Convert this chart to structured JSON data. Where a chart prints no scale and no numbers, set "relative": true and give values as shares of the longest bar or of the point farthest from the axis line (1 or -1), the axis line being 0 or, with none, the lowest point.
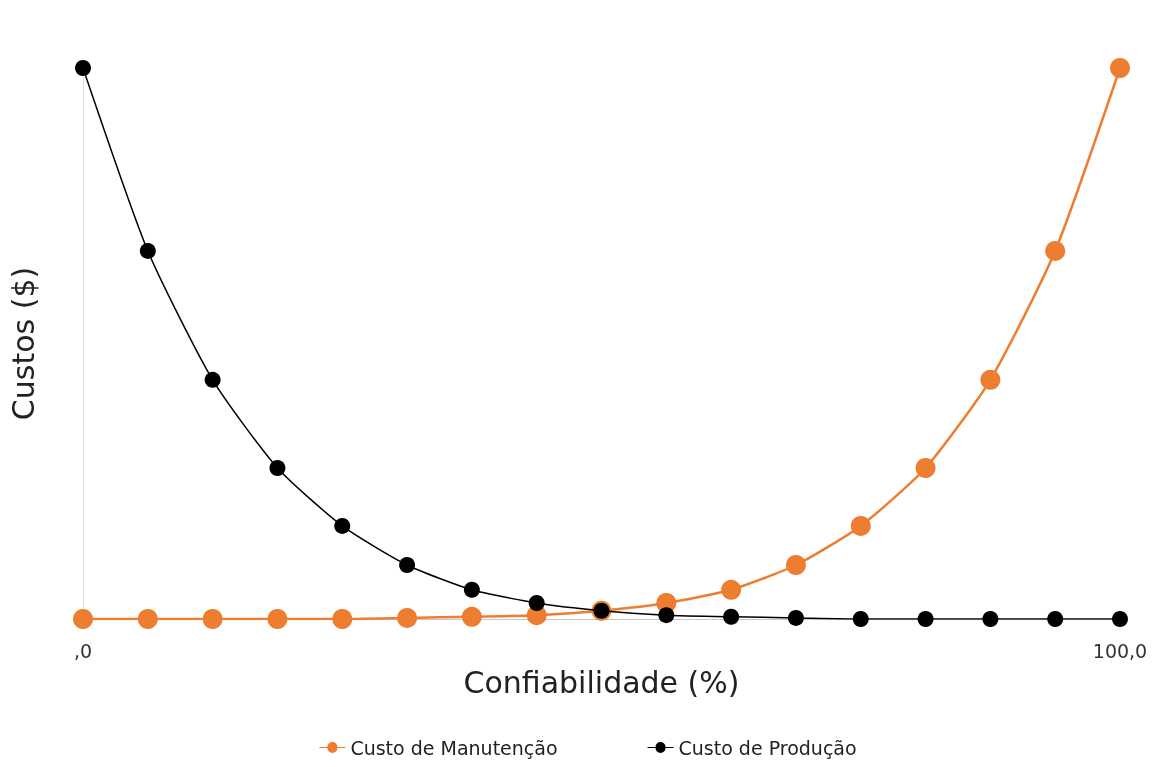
{
  "chart_data": {
    "type": "line",
    "xlabel": "Confiabilidade (%)",
    "ylabel": "Custos ($)",
    "relative": true,
    "x": [
      0,
      6.25,
      12.5,
      18.75,
      25,
      31.25,
      37.5,
      43.75,
      50,
      56.25,
      62.5,
      68.75,
      75,
      81.25,
      87.5,
      93.75,
      100
    ],
    "xlim": [
      0,
      100
    ],
    "xticks": [
      {
        "value": 0,
        "label": ",0"
      },
      {
        "value": 100,
        "label": "100,0"
      }
    ],
    "series": [
      {
        "name": "Custo de Manutenção",
        "color": "#ed7d31",
        "values": [
          0,
          0,
          0,
          0,
          0,
          0.002,
          0.004,
          0.007,
          0.015,
          0.029,
          0.053,
          0.098,
          0.169,
          0.274,
          0.434,
          0.668,
          1
        ]
      },
      {
        "name": "Custo de Produção",
        "color": "#000000",
        "values": [
          1,
          0.668,
          0.434,
          0.274,
          0.169,
          0.098,
          0.053,
          0.029,
          0.015,
          0.007,
          0.004,
          0.002,
          0,
          0,
          0,
          0,
          0
        ]
      }
    ],
    "marker": "circle",
    "line_style": "solid",
    "grid": false,
    "legend": "bottom"
  }
}
